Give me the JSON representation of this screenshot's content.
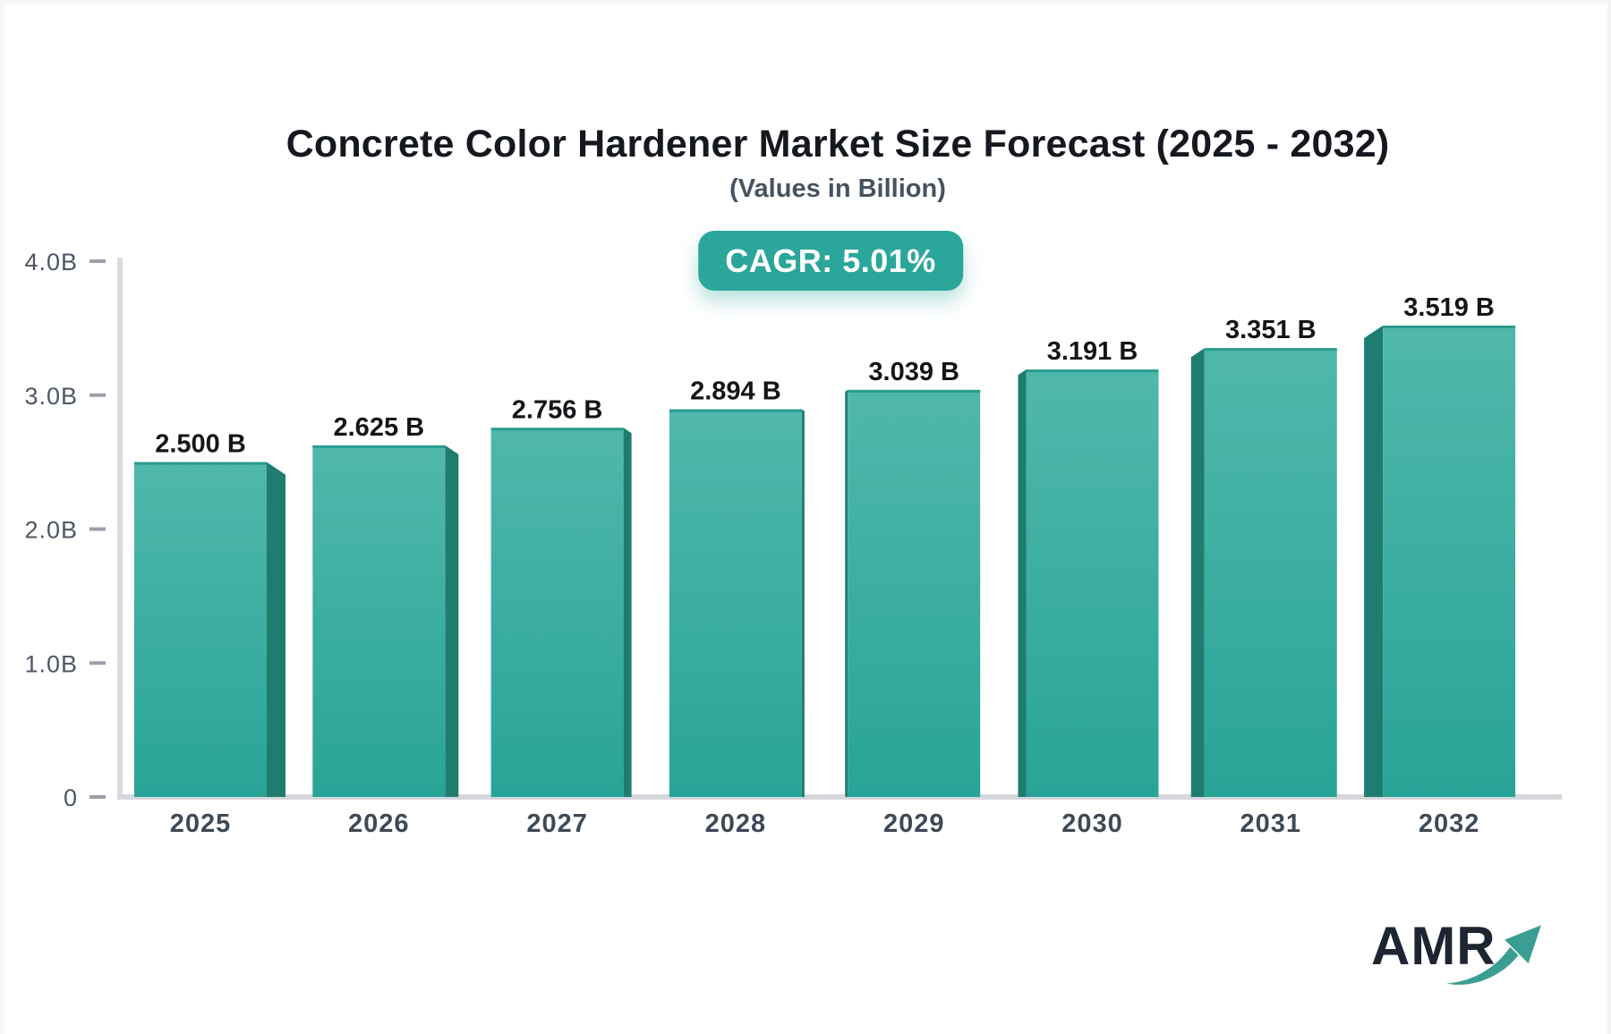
{
  "header": {
    "title": "Concrete Color Hardener Market Size Forecast (2025 - 2032)",
    "subtitle": "(Values in Billion)"
  },
  "badge": {
    "label": "CAGR: 5.01%"
  },
  "logo": {
    "text": "AMR",
    "icon": "growth-arrow-icon"
  },
  "colors": {
    "accent_teal": "#2ba69b",
    "badge_bg": "#2ba69b",
    "badge_text": "#ffffff",
    "bar_face_top": "#50b8ab",
    "bar_face_bottom": "#28a497",
    "bar_top_edge": "#2a9c8e",
    "bar_side": "#1f7d70",
    "axis_line": "#d9dce1",
    "baseline": "#d4d7dc",
    "tick_dash": "#9aa1ab",
    "tick_label": "#4d5766",
    "year_label": "#3e4956",
    "value_label": "#131619",
    "title_text": "#15191f",
    "subtitle_text": "#475260",
    "logo_text": "#1d2531",
    "logo_arrow": "#3b9e92"
  },
  "chart_data": {
    "type": "bar",
    "title": "Concrete Color Hardener Market Size Forecast (2025 - 2032)",
    "subtitle": "(Values in Billion)",
    "unit": "Billion",
    "cagr": "5.01%",
    "categories": [
      "2025",
      "2026",
      "2027",
      "2028",
      "2029",
      "2030",
      "2031",
      "2032"
    ],
    "values": [
      2.5,
      2.625,
      2.756,
      2.894,
      3.039,
      3.191,
      3.351,
      3.519
    ],
    "value_labels": [
      "2.500 B",
      "2.625 B",
      "2.756 B",
      "2.894 B",
      "3.039 B",
      "3.191 B",
      "3.351 B",
      "3.519 B"
    ],
    "xlabel": "",
    "ylabel": "",
    "ylim": [
      0,
      4.0
    ],
    "yticks": [
      {
        "value": 0,
        "label": "0"
      },
      {
        "value": 1.0,
        "label": "1.0B"
      },
      {
        "value": 2.0,
        "label": "2.0B"
      },
      {
        "value": 3.0,
        "label": "3.0B"
      },
      {
        "value": 4.0,
        "label": "4.0B"
      }
    ],
    "grid": false,
    "legend": false,
    "bar_style": "3d-perspective, teal gradient faces, dark sides facing away from center"
  }
}
